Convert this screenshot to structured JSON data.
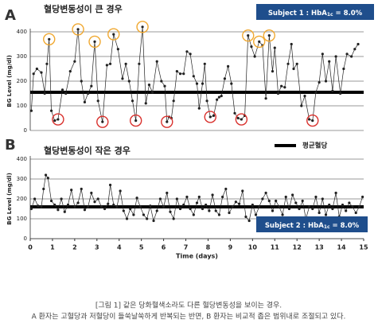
{
  "chart_data": [
    {
      "type": "line",
      "panel_label": "A",
      "title": "혈당변동성이 큰 경우",
      "subject": {
        "prefix": "Subject 1 : HbA",
        "sub": "1c",
        "suffix": " = 8.0%"
      },
      "y_label": "BG Level (mg/dl)",
      "xlim": [
        0,
        15
      ],
      "ylim": [
        0,
        400
      ],
      "yticks": [
        0,
        100,
        200,
        300,
        400
      ],
      "grid": true,
      "color": "#222222",
      "mean": 155,
      "mean_color": "#000000",
      "x": [
        0.05,
        0.15,
        0.3,
        0.5,
        0.65,
        0.75,
        0.85,
        0.95,
        1.1,
        1.25,
        1.45,
        1.6,
        1.8,
        2.0,
        2.15,
        2.3,
        2.45,
        2.6,
        2.75,
        2.9,
        3.05,
        3.25,
        3.45,
        3.6,
        3.75,
        3.95,
        4.15,
        4.3,
        4.45,
        4.6,
        4.75,
        4.9,
        5.05,
        5.2,
        5.35,
        5.5,
        5.7,
        5.9,
        6.05,
        6.15,
        6.25,
        6.35,
        6.45,
        6.6,
        6.75,
        6.9,
        7.05,
        7.2,
        7.35,
        7.5,
        7.6,
        7.75,
        7.85,
        7.95,
        8.1,
        8.25,
        8.4,
        8.5,
        8.6,
        8.75,
        8.9,
        9.05,
        9.2,
        9.35,
        9.5,
        9.65,
        9.8,
        9.95,
        10.1,
        10.3,
        10.45,
        10.6,
        10.75,
        10.9,
        11.0,
        11.15,
        11.3,
        11.45,
        11.6,
        11.75,
        11.85,
        12.0,
        12.2,
        12.35,
        12.55,
        12.7,
        12.85,
        13.0,
        13.15,
        13.3,
        13.45,
        13.6,
        13.75,
        13.95,
        14.1,
        14.25,
        14.45,
        14.6,
        14.75
      ],
      "values": [
        80,
        230,
        250,
        235,
        150,
        270,
        370,
        80,
        40,
        45,
        165,
        150,
        240,
        280,
        410,
        200,
        115,
        150,
        180,
        360,
        120,
        35,
        265,
        270,
        390,
        330,
        210,
        270,
        200,
        120,
        40,
        270,
        420,
        110,
        185,
        155,
        280,
        200,
        180,
        35,
        55,
        50,
        120,
        240,
        230,
        230,
        320,
        310,
        220,
        190,
        90,
        190,
        270,
        120,
        55,
        60,
        125,
        135,
        140,
        210,
        260,
        190,
        70,
        50,
        45,
        60,
        385,
        340,
        300,
        360,
        345,
        130,
        385,
        240,
        335,
        150,
        180,
        175,
        270,
        350,
        250,
        270,
        100,
        140,
        45,
        40,
        155,
        195,
        310,
        200,
        280,
        160,
        300,
        150,
        250,
        310,
        300,
        330,
        350
      ],
      "highlights": [
        {
          "index": 6,
          "color": "#f0a830"
        },
        {
          "index": 14,
          "color": "#f0a830"
        },
        {
          "index": 19,
          "color": "#f0a830"
        },
        {
          "index": 24,
          "color": "#f0a830"
        },
        {
          "index": 32,
          "color": "#f0a830"
        },
        {
          "index": 66,
          "color": "#f0a830"
        },
        {
          "index": 69,
          "color": "#f0a830"
        },
        {
          "index": 72,
          "color": "#f0a830"
        },
        {
          "index": 9,
          "color": "#d9302c"
        },
        {
          "index": 21,
          "color": "#d9302c"
        },
        {
          "index": 30,
          "color": "#d9302c"
        },
        {
          "index": 39,
          "color": "#d9302c"
        },
        {
          "index": 54,
          "color": "#d9302c"
        },
        {
          "index": 64,
          "color": "#d9302c"
        },
        {
          "index": 85,
          "color": "#d9302c"
        }
      ]
    },
    {
      "type": "line",
      "panel_label": "B",
      "title": "혈당변동성이 작은 경우",
      "subject": {
        "prefix": "Subject 2 : HbA",
        "sub": "1c",
        "suffix": " = 8.0%"
      },
      "y_label": "BG Level (mg/dl)",
      "x_label": "Time (days)",
      "legend": "평균혈당",
      "xlim": [
        0,
        15
      ],
      "xticks": [
        0,
        1,
        2,
        3,
        4,
        5,
        6,
        7,
        8,
        9,
        10,
        11,
        12,
        13,
        14,
        15
      ],
      "ylim": [
        0,
        400
      ],
      "yticks": [
        0,
        100,
        200,
        300,
        400
      ],
      "grid": true,
      "color": "#222222",
      "mean": 160,
      "mean_color": "#000000",
      "x": [
        0.05,
        0.2,
        0.35,
        0.5,
        0.6,
        0.7,
        0.8,
        0.95,
        1.1,
        1.25,
        1.4,
        1.55,
        1.7,
        1.85,
        2.0,
        2.15,
        2.3,
        2.45,
        2.6,
        2.75,
        2.9,
        3.05,
        3.2,
        3.35,
        3.5,
        3.6,
        3.75,
        3.9,
        4.05,
        4.2,
        4.35,
        4.5,
        4.65,
        4.8,
        4.95,
        5.1,
        5.25,
        5.4,
        5.55,
        5.7,
        5.85,
        6.0,
        6.15,
        6.3,
        6.45,
        6.6,
        6.75,
        6.9,
        7.05,
        7.2,
        7.35,
        7.5,
        7.6,
        7.75,
        7.9,
        8.05,
        8.2,
        8.35,
        8.5,
        8.65,
        8.8,
        8.95,
        9.1,
        9.25,
        9.4,
        9.55,
        9.7,
        9.85,
        10.0,
        10.15,
        10.3,
        10.45,
        10.6,
        10.75,
        10.9,
        11.05,
        11.2,
        11.35,
        11.5,
        11.65,
        11.8,
        11.95,
        12.1,
        12.25,
        12.4,
        12.55,
        12.7,
        12.85,
        13.0,
        13.15,
        13.3,
        13.45,
        13.6,
        13.75,
        13.9,
        14.05,
        14.2,
        14.35,
        14.5,
        14.65,
        14.8,
        14.95
      ],
      "values": [
        150,
        200,
        165,
        160,
        250,
        320,
        305,
        190,
        170,
        145,
        200,
        135,
        170,
        245,
        160,
        180,
        250,
        145,
        160,
        230,
        185,
        200,
        160,
        150,
        175,
        270,
        170,
        160,
        240,
        140,
        100,
        150,
        120,
        205,
        160,
        120,
        100,
        165,
        90,
        140,
        200,
        160,
        230,
        135,
        100,
        200,
        150,
        170,
        210,
        150,
        120,
        180,
        210,
        150,
        170,
        140,
        220,
        140,
        120,
        210,
        250,
        130,
        160,
        185,
        175,
        240,
        110,
        90,
        170,
        120,
        160,
        200,
        230,
        190,
        140,
        190,
        160,
        120,
        210,
        150,
        220,
        180,
        150,
        190,
        100,
        160,
        150,
        210,
        130,
        200,
        120,
        170,
        150,
        230,
        110,
        170,
        140,
        180,
        160,
        130,
        160,
        210
      ]
    }
  ],
  "caption": [
    "[그림 1] 같은 당화혈색소라도 다른 혈당변동성을 보이는 경우.",
    "A 환자는 고혈당과 저혈당이 들쑥날쑥하게 반복되는 반면, B 환자는 비교적 좁은 범위내로 조절되고 있다."
  ]
}
